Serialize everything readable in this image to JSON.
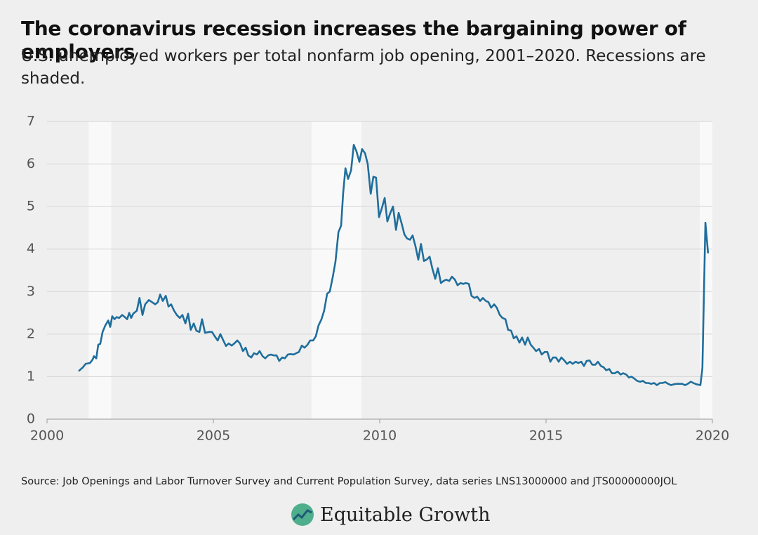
{
  "chart_data": {
    "type": "line",
    "title": "The coronavirus recession increases the bargaining power of employers",
    "subtitle": "U.S. unemployed workers per total nonfarm job opening, 2001–2020. Recessions are shaded.",
    "source": "Source: Job Openings and Labor Turnover Survey and Current Population Survey, data series LNS13000000 and JTS00000000JOL",
    "logo": "Equitable Growth",
    "xlim": [
      2000,
      2020
    ],
    "xticks": [
      2000,
      2005,
      2010,
      2015,
      2020
    ],
    "ylim": [
      0,
      7
    ],
    "yticks": [
      0,
      1,
      2,
      3,
      4,
      5,
      6,
      7
    ],
    "grid": true,
    "recessions": [
      [
        2001.25,
        2001.93
      ],
      [
        2007.95,
        2009.45
      ],
      [
        2019.62,
        2020
      ]
    ],
    "recession_color": "#f9f9f9",
    "series": [
      {
        "name": "Unemployed per job opening",
        "color": "#1f6e9c",
        "x": [
          2000.95,
          2001.08,
          2001.16,
          2001.29,
          2001.37,
          2001.41,
          2001.48,
          2001.54,
          2001.6,
          2001.67,
          2001.75,
          2001.84,
          2001.9,
          2001.96,
          2002.03,
          2002.09,
          2002.17,
          2002.26,
          2002.34,
          2002.41,
          2002.47,
          2002.53,
          2002.59,
          2002.7,
          2002.78,
          2002.87,
          2002.95,
          2003.06,
          2003.16,
          2003.25,
          2003.33,
          2003.4,
          2003.48,
          2003.57,
          2003.65,
          2003.73,
          2003.82,
          2003.9,
          2003.99,
          2004.07,
          2004.16,
          2004.24,
          2004.32,
          2004.41,
          2004.49,
          2004.58,
          2004.66,
          2004.75,
          2004.87,
          2004.96,
          2005.04,
          2005.13,
          2005.21,
          2005.3,
          2005.38,
          2005.46,
          2005.55,
          2005.63,
          2005.72,
          2005.8,
          2005.89,
          2005.97,
          2006.05,
          2006.14,
          2006.22,
          2006.31,
          2006.39,
          2006.48,
          2006.56,
          2006.65,
          2006.73,
          2006.81,
          2006.9,
          2006.98,
          2007.07,
          2007.15,
          2007.24,
          2007.32,
          2007.41,
          2007.49,
          2007.57,
          2007.66,
          2007.74,
          2007.83,
          2007.91,
          2008.0,
          2008.08,
          2008.16,
          2008.25,
          2008.33,
          2008.42,
          2008.5,
          2008.59,
          2008.67,
          2008.76,
          2008.84,
          2008.9,
          2008.97,
          2009.05,
          2009.14,
          2009.22,
          2009.3,
          2009.39,
          2009.47,
          2009.56,
          2009.64,
          2009.73,
          2009.81,
          2009.89,
          2009.98,
          2010.06,
          2010.15,
          2010.23,
          2010.32,
          2010.4,
          2010.49,
          2010.57,
          2010.66,
          2010.74,
          2010.82,
          2010.91,
          2010.99,
          2011.08,
          2011.16,
          2011.24,
          2011.33,
          2011.41,
          2011.5,
          2011.58,
          2011.67,
          2011.75,
          2011.84,
          2011.92,
          2012.0,
          2012.09,
          2012.17,
          2012.26,
          2012.34,
          2012.43,
          2012.51,
          2012.59,
          2012.68,
          2012.76,
          2012.85,
          2012.93,
          2013.02,
          2013.1,
          2013.19,
          2013.27,
          2013.35,
          2013.44,
          2013.52,
          2013.61,
          2013.69,
          2013.78,
          2013.86,
          2013.95,
          2014.03,
          2014.11,
          2014.2,
          2014.28,
          2014.37,
          2014.45,
          2014.54,
          2014.62,
          2014.7,
          2014.79,
          2014.87,
          2014.96,
          2015.04,
          2015.13,
          2015.21,
          2015.3,
          2015.38,
          2015.46,
          2015.55,
          2015.63,
          2015.72,
          2015.8,
          2015.89,
          2015.97,
          2016.06,
          2016.14,
          2016.22,
          2016.31,
          2016.39,
          2016.48,
          2016.56,
          2016.65,
          2016.73,
          2016.81,
          2016.9,
          2016.98,
          2017.07,
          2017.15,
          2017.24,
          2017.32,
          2017.41,
          2017.49,
          2017.57,
          2017.66,
          2017.74,
          2017.83,
          2017.91,
          2018.0,
          2018.08,
          2018.16,
          2018.25,
          2018.33,
          2018.42,
          2018.5,
          2018.59,
          2018.67,
          2018.76,
          2018.84,
          2018.92,
          2019.01,
          2019.09,
          2019.18,
          2019.26,
          2019.35,
          2019.43,
          2019.52,
          2019.64,
          2019.7,
          2019.79,
          2019.87
        ],
        "values": [
          1.13,
          1.22,
          1.3,
          1.32,
          1.4,
          1.48,
          1.43,
          1.75,
          1.77,
          2.05,
          2.2,
          2.32,
          2.17,
          2.42,
          2.35,
          2.4,
          2.38,
          2.45,
          2.4,
          2.35,
          2.5,
          2.38,
          2.48,
          2.55,
          2.85,
          2.45,
          2.7,
          2.8,
          2.75,
          2.7,
          2.75,
          2.93,
          2.78,
          2.9,
          2.65,
          2.7,
          2.55,
          2.45,
          2.38,
          2.45,
          2.25,
          2.48,
          2.1,
          2.25,
          2.08,
          2.05,
          2.35,
          2.03,
          2.05,
          2.05,
          1.95,
          1.85,
          2.0,
          1.85,
          1.72,
          1.78,
          1.73,
          1.78,
          1.85,
          1.78,
          1.6,
          1.68,
          1.5,
          1.45,
          1.55,
          1.52,
          1.6,
          1.48,
          1.43,
          1.5,
          1.52,
          1.5,
          1.5,
          1.37,
          1.45,
          1.43,
          1.52,
          1.53,
          1.52,
          1.55,
          1.58,
          1.73,
          1.68,
          1.75,
          1.85,
          1.85,
          1.95,
          2.2,
          2.35,
          2.55,
          2.95,
          3.0,
          3.35,
          3.7,
          4.4,
          4.55,
          5.3,
          5.9,
          5.65,
          5.85,
          6.45,
          6.3,
          6.05,
          6.35,
          6.25,
          6.0,
          5.3,
          5.7,
          5.68,
          4.75,
          4.95,
          5.2,
          4.65,
          4.85,
          5.0,
          4.45,
          4.85,
          4.6,
          4.35,
          4.25,
          4.22,
          4.32,
          4.05,
          3.75,
          4.12,
          3.72,
          3.75,
          3.82,
          3.55,
          3.3,
          3.55,
          3.2,
          3.25,
          3.28,
          3.25,
          3.35,
          3.28,
          3.15,
          3.2,
          3.18,
          3.2,
          3.18,
          2.9,
          2.85,
          2.88,
          2.78,
          2.85,
          2.78,
          2.75,
          2.62,
          2.7,
          2.62,
          2.45,
          2.38,
          2.35,
          2.1,
          2.08,
          1.9,
          1.95,
          1.8,
          1.92,
          1.75,
          1.92,
          1.75,
          1.68,
          1.6,
          1.65,
          1.52,
          1.58,
          1.58,
          1.35,
          1.45,
          1.45,
          1.35,
          1.45,
          1.38,
          1.3,
          1.35,
          1.3,
          1.35,
          1.32,
          1.35,
          1.25,
          1.37,
          1.38,
          1.28,
          1.28,
          1.35,
          1.25,
          1.22,
          1.15,
          1.18,
          1.08,
          1.08,
          1.12,
          1.05,
          1.08,
          1.05,
          0.98,
          1.0,
          0.95,
          0.9,
          0.88,
          0.9,
          0.85,
          0.85,
          0.83,
          0.85,
          0.8,
          0.85,
          0.85,
          0.87,
          0.83,
          0.8,
          0.82,
          0.83,
          0.83,
          0.83,
          0.8,
          0.83,
          0.88,
          0.85,
          0.82,
          0.8,
          1.2,
          4.62,
          3.9
        ]
      }
    ]
  }
}
